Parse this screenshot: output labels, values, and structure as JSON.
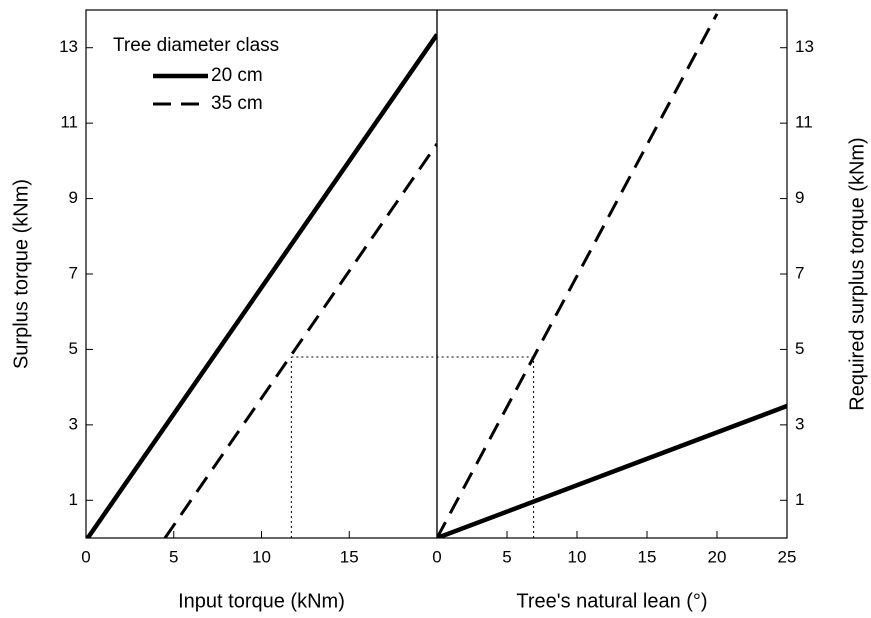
{
  "chart_data": [
    {
      "type": "line",
      "x_label": "Input torque (kNm)",
      "y_label": "Surplus torque (kNm)",
      "xlim": [
        0,
        20
      ],
      "xticks": [
        0,
        5,
        10,
        15
      ],
      "ylim": [
        0,
        14
      ],
      "yticks": [
        1,
        3,
        5,
        7,
        9,
        11,
        13
      ],
      "legend_title": "Tree diameter class",
      "series": [
        {
          "name": "20 cm",
          "color": "#000000",
          "style": "solid",
          "x": [
            0.1,
            20
          ],
          "values": [
            0,
            13.35
          ]
        },
        {
          "name": "35 cm",
          "color": "#000000",
          "style": "dashed",
          "x": [
            4.5,
            20
          ],
          "values": [
            0,
            10.45
          ]
        }
      ],
      "reference": {
        "x": 11.7,
        "y": 4.8
      }
    },
    {
      "type": "line",
      "x_label": "Tree's natural lean (°)",
      "y_label": "Required surplus torque (kNm)",
      "xlim": [
        0,
        25
      ],
      "xticks": [
        0,
        5,
        10,
        15,
        20,
        25
      ],
      "ylim": [
        0,
        14
      ],
      "yticks": [
        1,
        3,
        5,
        7,
        9,
        11,
        13
      ],
      "series": [
        {
          "name": "20 cm",
          "color": "#000000",
          "style": "solid",
          "x": [
            0,
            25
          ],
          "values": [
            0,
            3.5
          ]
        },
        {
          "name": "35 cm",
          "color": "#000000",
          "style": "dashed",
          "x": [
            0,
            20
          ],
          "values": [
            0,
            13.9
          ]
        }
      ],
      "reference": {
        "x": 6.9,
        "y": 4.8
      }
    }
  ]
}
